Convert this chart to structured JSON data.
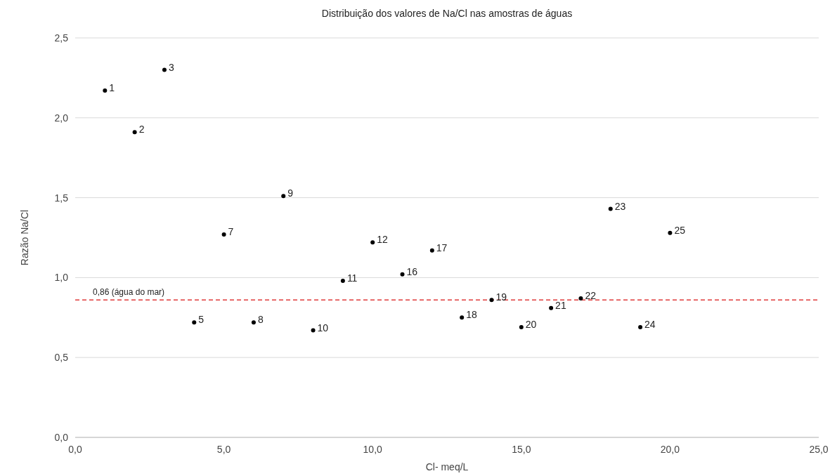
{
  "chart_data": {
    "type": "scatter",
    "title": "Distribuição dos valores de Na/Cl nas amostras de águas",
    "xlabel": "Cl- meq/L",
    "ylabel": "Razão Na/Cl",
    "x": [
      1,
      2,
      3,
      4,
      5,
      6,
      7,
      8,
      9,
      10,
      11,
      12,
      13,
      14,
      15,
      16,
      17,
      18,
      19,
      20
    ],
    "series": [
      {
        "color": "#000000",
        "values": [
          2.17,
          1.91,
          2.3,
          0.72,
          1.27,
          0.72,
          1.51,
          0.67,
          0.98,
          1.22,
          1.02,
          1.17,
          0.75,
          0.86,
          0.69,
          0.81,
          0.87,
          1.43,
          0.69,
          1.28
        ]
      }
    ],
    "xlim": [
      0,
      25
    ],
    "ylim": [
      0,
      2.5
    ],
    "xticks": [
      {
        "value": 0,
        "label": "0,0"
      },
      {
        "value": 5,
        "label": "5,0"
      },
      {
        "value": 10,
        "label": "10,0"
      },
      {
        "value": 15,
        "label": "15,0"
      },
      {
        "value": 20,
        "label": "20,0"
      },
      {
        "value": 25,
        "label": "25,0"
      }
    ],
    "yticks": [
      {
        "value": 0,
        "label": "0,0"
      },
      {
        "value": 0.5,
        "label": "0,5"
      },
      {
        "value": 1,
        "label": "1,0"
      },
      {
        "value": 1.5,
        "label": "1,5"
      },
      {
        "value": 2,
        "label": "2,0"
      },
      {
        "value": 2.5,
        "label": "2,5"
      }
    ],
    "grid": "y",
    "marker": "circle",
    "ref_lines": [
      {
        "axis": "y",
        "value": 0.86,
        "label": "0,86 (água do mar)",
        "color": "#e03a3a",
        "line_style": "dashed"
      }
    ],
    "annotations": [
      {
        "text": "1",
        "x": 1,
        "y": 2.17
      },
      {
        "text": "2",
        "x": 2,
        "y": 1.91
      },
      {
        "text": "3",
        "x": 3,
        "y": 2.3
      },
      {
        "text": "5",
        "x": 4,
        "y": 0.72
      },
      {
        "text": "7",
        "x": 5,
        "y": 1.27
      },
      {
        "text": "8",
        "x": 6,
        "y": 0.72
      },
      {
        "text": "9",
        "x": 7,
        "y": 1.51
      },
      {
        "text": "10",
        "x": 8,
        "y": 0.67
      },
      {
        "text": "11",
        "x": 9,
        "y": 0.98
      },
      {
        "text": "12",
        "x": 10,
        "y": 1.22
      },
      {
        "text": "16",
        "x": 11,
        "y": 1.02
      },
      {
        "text": "17",
        "x": 12,
        "y": 1.17
      },
      {
        "text": "18",
        "x": 13,
        "y": 0.75
      },
      {
        "text": "19",
        "x": 14,
        "y": 0.86
      },
      {
        "text": "20",
        "x": 15,
        "y": 0.69
      },
      {
        "text": "21",
        "x": 16,
        "y": 0.81
      },
      {
        "text": "22",
        "x": 17,
        "y": 0.87
      },
      {
        "text": "23",
        "x": 18,
        "y": 1.43
      },
      {
        "text": "24",
        "x": 19,
        "y": 0.69
      },
      {
        "text": "25",
        "x": 20,
        "y": 1.28
      }
    ]
  }
}
